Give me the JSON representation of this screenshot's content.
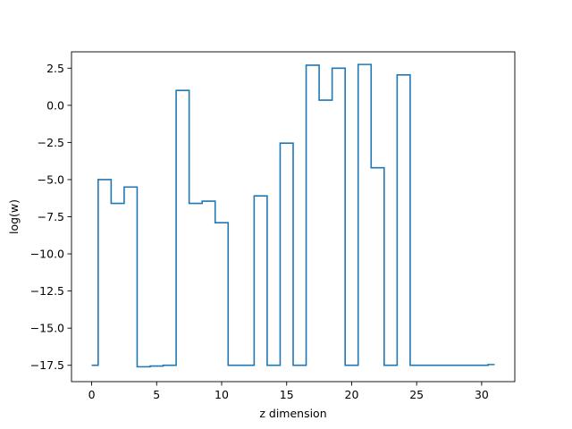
{
  "chart_data": {
    "type": "line",
    "drawstyle": "steps-mid",
    "title": "",
    "xlabel": "z dimension",
    "ylabel": "log(w)",
    "xlim": [
      -1.55,
      32.55
    ],
    "ylim": [
      -18.6,
      3.6
    ],
    "xticks": [
      0,
      5,
      10,
      15,
      20,
      25,
      30
    ],
    "yticks": [
      2.5,
      0.0,
      -2.5,
      -5.0,
      -7.5,
      -10.0,
      -12.5,
      -15.0,
      -17.5
    ],
    "ytick_labels": [
      "2.5",
      "0.0",
      "−2.5",
      "−5.0",
      "−7.5",
      "−10.0",
      "−12.5",
      "−15.0",
      "−17.5"
    ],
    "grid": false,
    "legend": "none",
    "series": [
      {
        "color": "#1f77b4",
        "x": [
          0,
          1,
          2,
          3,
          4,
          5,
          6,
          7,
          8,
          9,
          10,
          11,
          12,
          13,
          14,
          15,
          16,
          17,
          18,
          19,
          20,
          21,
          22,
          23,
          24,
          25,
          26,
          27,
          28,
          29,
          30,
          31
        ],
        "y": [
          -17.5,
          -5.0,
          -6.6,
          -5.5,
          -17.6,
          -17.55,
          -17.5,
          1.0,
          -6.6,
          -6.45,
          -7.9,
          -17.5,
          -17.5,
          -6.1,
          -17.5,
          -2.55,
          -17.5,
          2.7,
          0.35,
          2.5,
          -17.5,
          2.75,
          -4.2,
          -17.5,
          2.05,
          -17.5,
          -17.5,
          -17.5,
          -17.5,
          -17.5,
          -17.5,
          -17.45
        ]
      }
    ]
  }
}
